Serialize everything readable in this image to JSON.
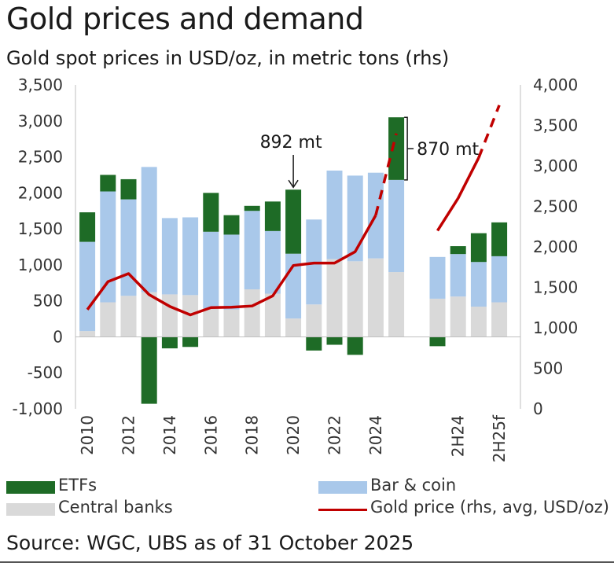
{
  "title": "Gold prices and demand",
  "subtitle": "Gold spot prices in USD/oz, in metric tons (rhs)",
  "source": "Source: WGC, UBS as of 31 October 2025",
  "colors": {
    "etf": "#1e6b26",
    "bar_coin": "#a9c8ea",
    "central_banks": "#d9d9d9",
    "gold_price": "#c00000"
  },
  "chart_data": {
    "type": "bar",
    "stacked": true,
    "title": "Gold prices and demand",
    "subtitle": "Gold spot prices in USD/oz, in metric tons (rhs)",
    "left_axis": {
      "min": -1000,
      "max": 3500,
      "ticks": [
        "3,500",
        "3,000",
        "2,500",
        "2,000",
        "1,500",
        "1,000",
        "500",
        "0",
        "-500",
        "-1,000"
      ]
    },
    "right_axis": {
      "min": 0,
      "max": 4000,
      "ticks": [
        "4,000",
        "3,500",
        "3,000",
        "2,500",
        "2,000",
        "1,500",
        "1,000",
        "500",
        "0"
      ]
    },
    "x_labels": [
      "2010",
      "2012",
      "2014",
      "2016",
      "2018",
      "2020",
      "2022",
      "2024",
      "2H24",
      "2H25f"
    ],
    "categories": [
      "2010",
      "2011",
      "2012",
      "2013",
      "2014",
      "2015",
      "2016",
      "2017",
      "2018",
      "2019",
      "2020",
      "2021",
      "2022",
      "2023",
      "2024",
      "2025",
      "",
      "1H24",
      "2H24",
      "1H25",
      "2H25f"
    ],
    "series": [
      {
        "name": "Central banks",
        "values": [
          80,
          480,
          570,
          620,
          590,
          580,
          390,
          380,
          660,
          600,
          255,
          450,
          1080,
          1050,
          1090,
          900,
          null,
          530,
          560,
          420,
          480
        ]
      },
      {
        "name": "Bar & coin",
        "values": [
          1240,
          1540,
          1340,
          1740,
          1060,
          1080,
          1070,
          1040,
          1090,
          870,
          900,
          1180,
          1230,
          1190,
          1190,
          1280,
          null,
          580,
          590,
          620,
          640
        ]
      },
      {
        "name": "ETFs",
        "values": [
          410,
          230,
          280,
          -930,
          -160,
          -140,
          540,
          270,
          70,
          410,
          890,
          -190,
          -110,
          -250,
          0,
          870,
          null,
          -130,
          110,
          400,
          470
        ]
      }
    ],
    "gold_price": {
      "name": "Gold price (rhs, avg, USD/oz)",
      "values": [
        1225,
        1570,
        1670,
        1410,
        1265,
        1160,
        1250,
        1255,
        1270,
        1395,
        1770,
        1800,
        1800,
        1940,
        2390,
        3400,
        null,
        2200,
        2600,
        3100,
        3750
      ],
      "forecast_from_index": 14,
      "forecast_from_index_b": 19
    },
    "annotations": [
      {
        "text": "892 mt",
        "category": "2020"
      },
      {
        "text": "870 mt",
        "category": "2025"
      }
    ],
    "legend": [
      {
        "label": "ETFs"
      },
      {
        "label": "Bar & coin"
      },
      {
        "label": "Central banks"
      },
      {
        "label": "Gold price (rhs, avg, USD/oz)"
      }
    ]
  }
}
